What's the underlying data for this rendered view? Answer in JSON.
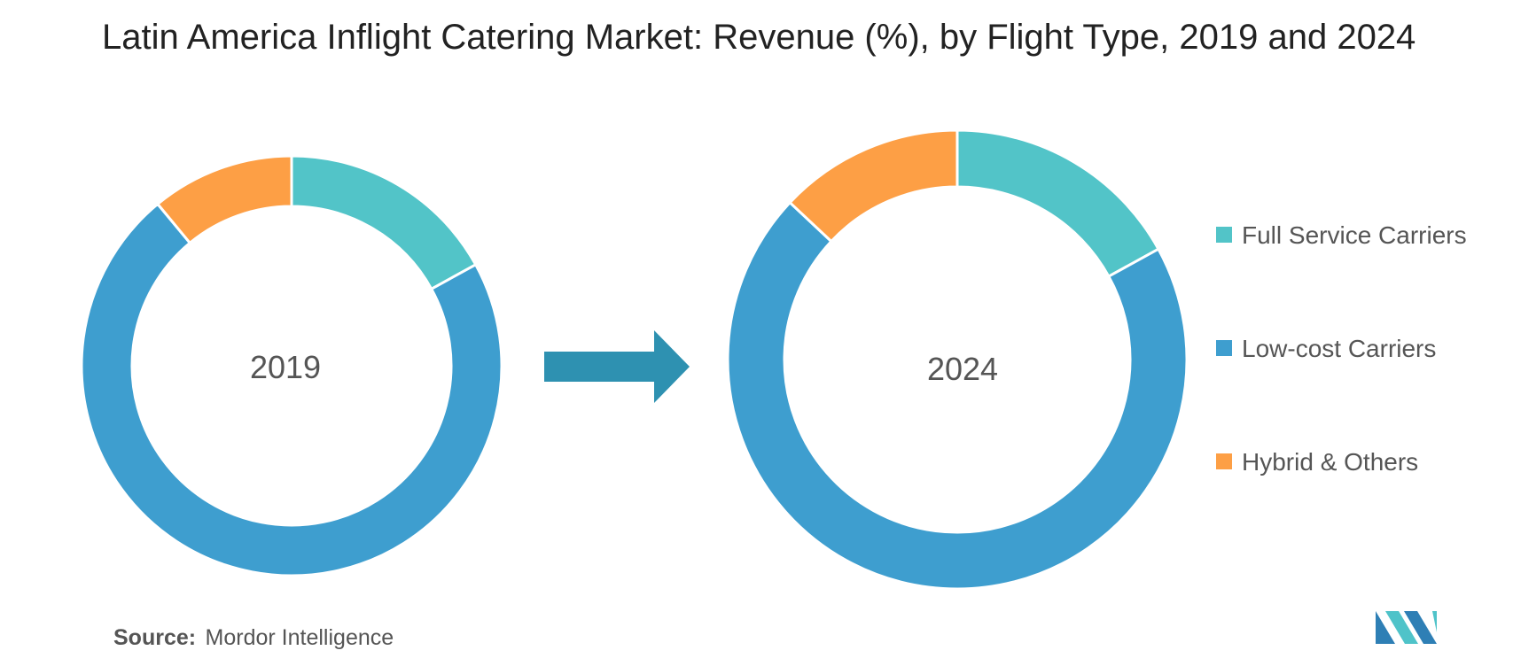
{
  "title": "Latin America Inflight Catering Market: Revenue (%), by Flight Type, 2019 and 2024",
  "source": {
    "label": "Source:",
    "text": "Mordor Intelligence"
  },
  "logo": {
    "icon": "mordor-intelligence-logo",
    "colors": [
      "#2e7fb5",
      "#4fc3c9"
    ]
  },
  "arrow_color": "#2e91b1",
  "chart_data": [
    {
      "type": "pie",
      "variant": "donut",
      "label": "2019",
      "categories": [
        "Full Service Carriers",
        "Low-cost Carriers",
        "Hybrid & Others"
      ],
      "values": [
        17,
        72,
        11
      ],
      "colors": [
        "#52c4c8",
        "#3e9ecf",
        "#fd9f45"
      ]
    },
    {
      "type": "pie",
      "variant": "donut",
      "label": "2024",
      "categories": [
        "Full Service Carriers",
        "Low-cost Carriers",
        "Hybrid & Others"
      ],
      "values": [
        17,
        70,
        13
      ],
      "colors": [
        "#52c4c8",
        "#3e9ecf",
        "#fd9f45"
      ]
    }
  ],
  "legend": {
    "position": "right",
    "items": [
      {
        "label": "Full Service Carriers",
        "color": "#52c4c8"
      },
      {
        "label": "Low-cost Carriers",
        "color": "#3e9ecf"
      },
      {
        "label": "Hybrid & Others",
        "color": "#fd9f45"
      }
    ]
  }
}
